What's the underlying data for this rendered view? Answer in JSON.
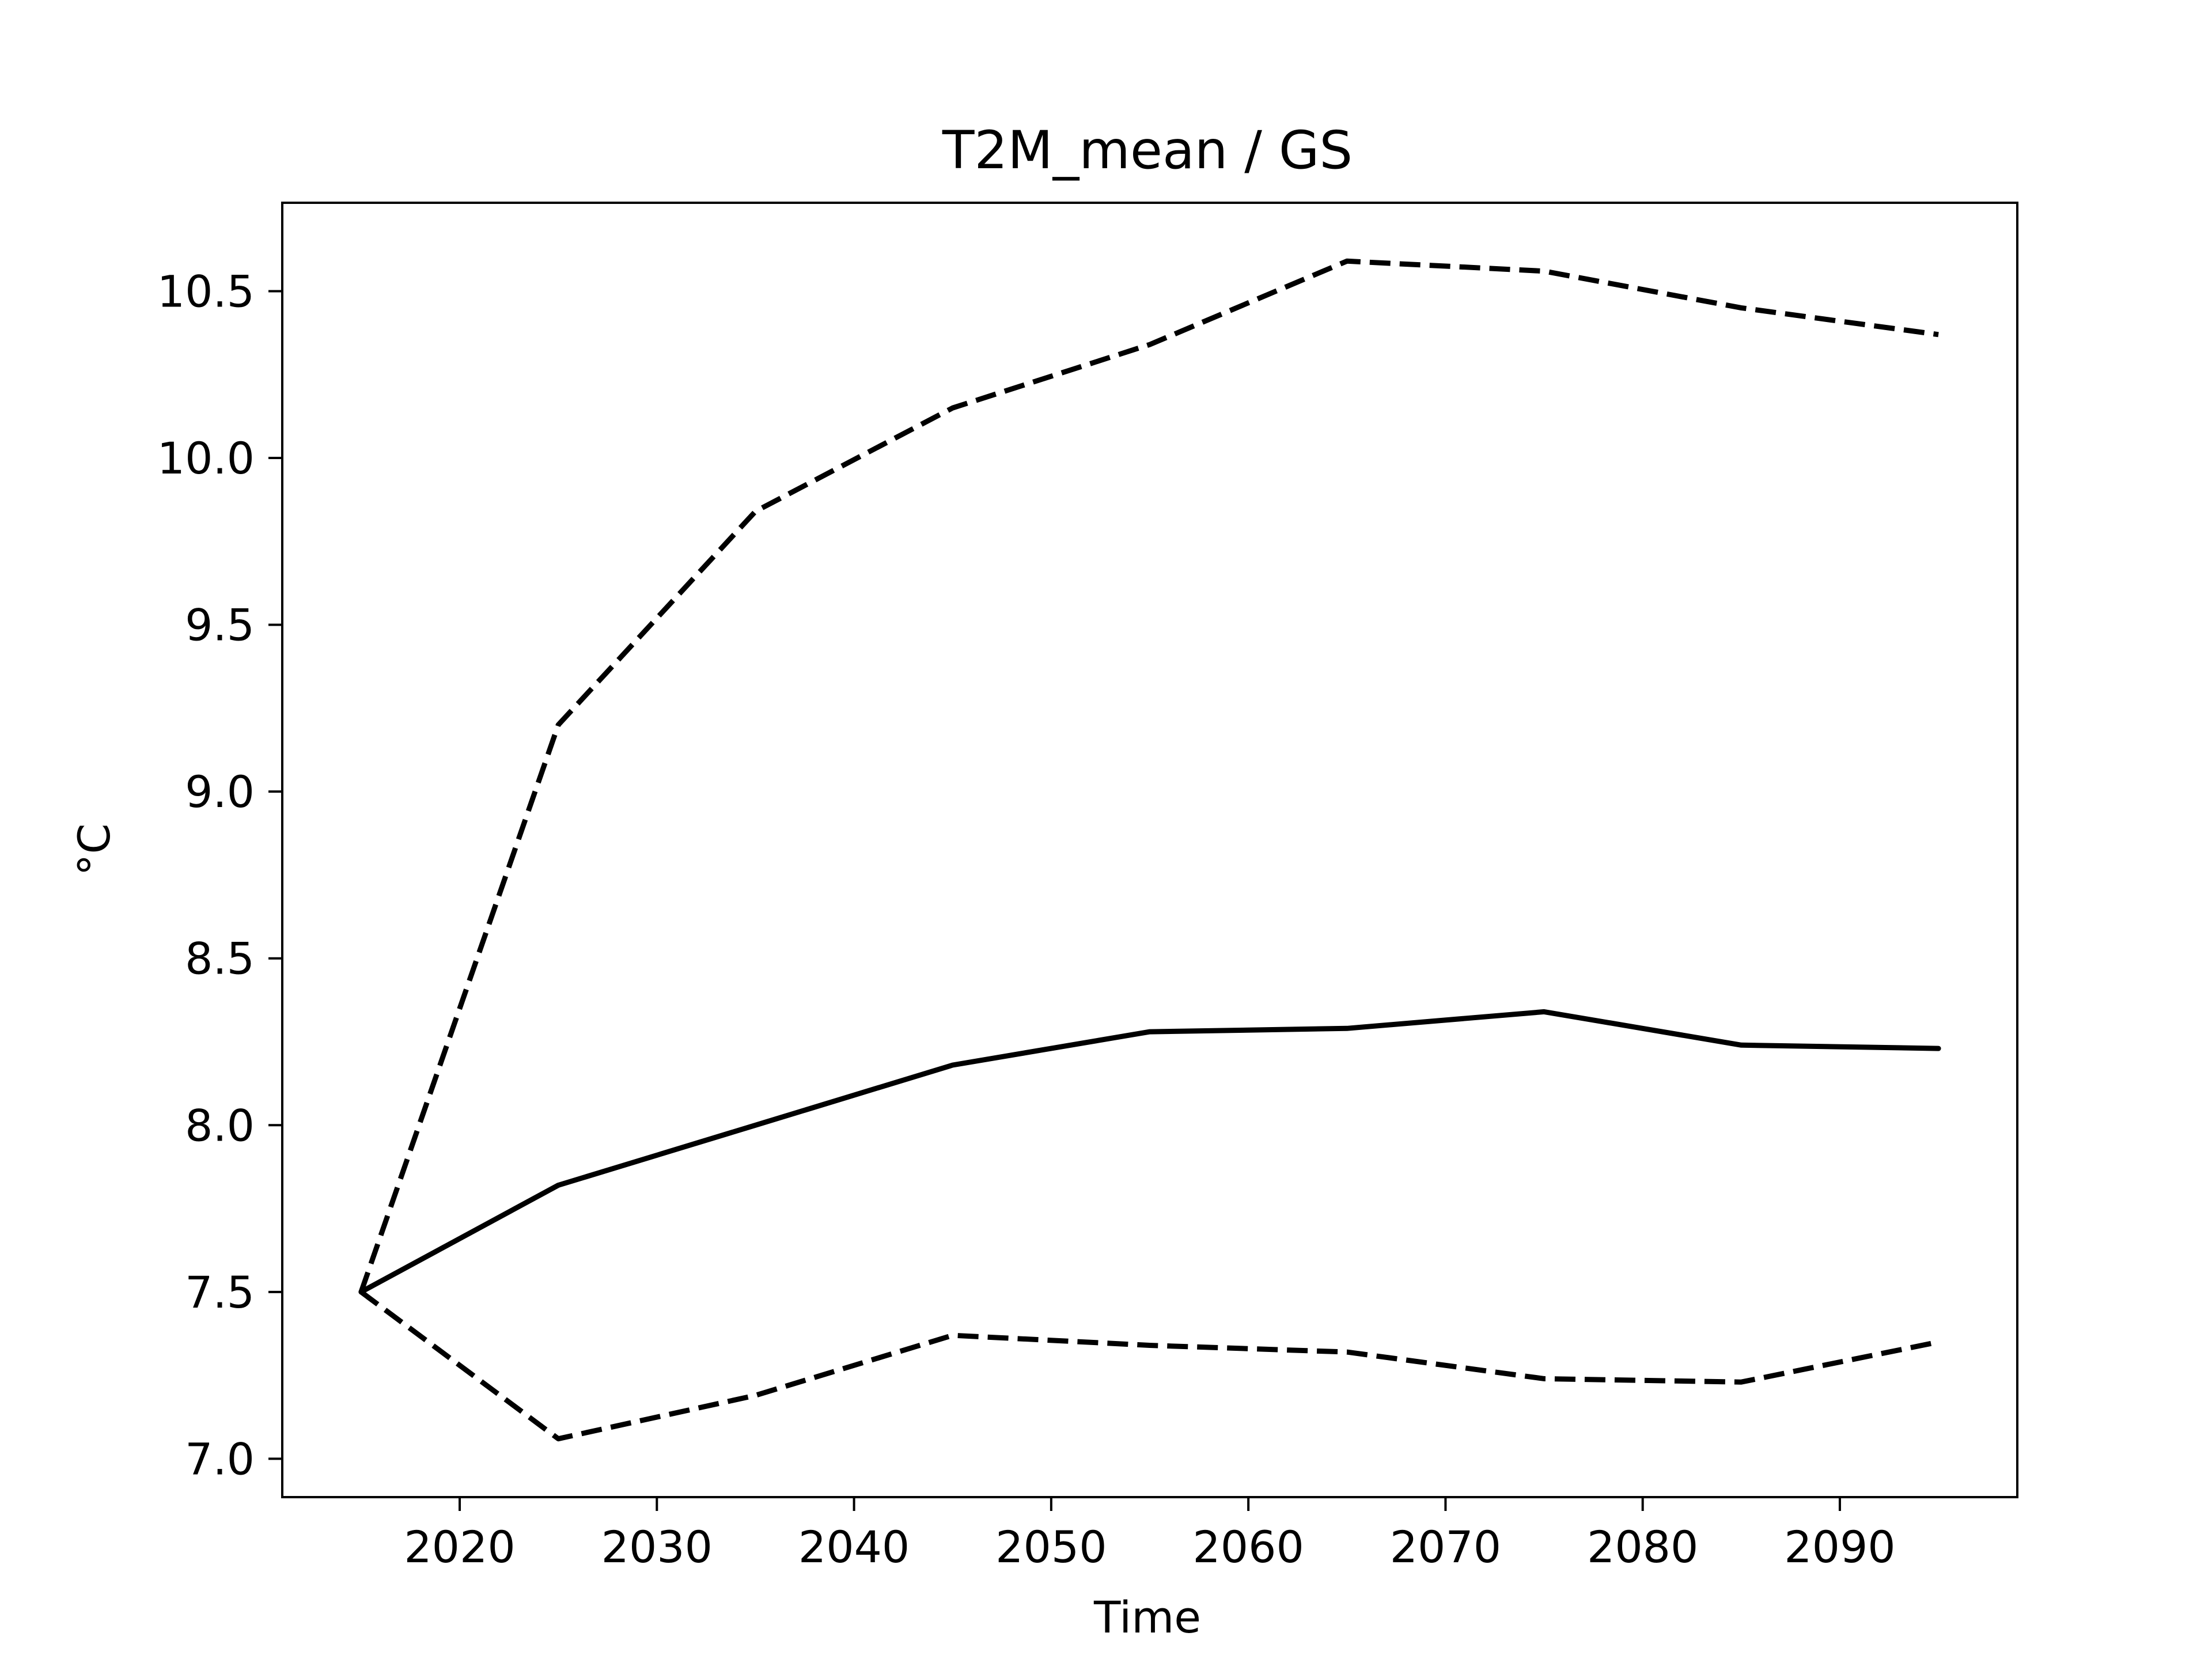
{
  "chart_data": {
    "type": "line",
    "title": "T2M_mean / GS",
    "xlabel": "Time",
    "ylabel": "°C",
    "xlim": [
      2011,
      2099
    ],
    "ylim": [
      6.885,
      10.765
    ],
    "grid": false,
    "x_ticks": [
      2020,
      2030,
      2040,
      2050,
      2060,
      2070,
      2080,
      2090
    ],
    "x_tick_labels": [
      "2020",
      "2030",
      "2040",
      "2050",
      "2060",
      "2070",
      "2080",
      "2090"
    ],
    "y_ticks": [
      7.0,
      7.5,
      8.0,
      8.5,
      9.0,
      9.5,
      10.0,
      10.5
    ],
    "y_tick_labels": [
      "7.0",
      "7.5",
      "8.0",
      "8.5",
      "9.0",
      "9.5",
      "10.0",
      "10.5"
    ],
    "x": [
      2015,
      2025,
      2035,
      2045,
      2055,
      2065,
      2075,
      2085,
      2095
    ],
    "series": [
      {
        "style": "solid",
        "color": "#000000",
        "values": [
          7.5,
          7.82,
          8.0,
          8.18,
          8.28,
          8.29,
          8.34,
          8.24,
          8.23
        ]
      },
      {
        "style": "dashed",
        "color": "#000000",
        "values": [
          7.5,
          9.2,
          9.84,
          10.15,
          10.34,
          10.59,
          10.56,
          10.45,
          10.37
        ]
      },
      {
        "style": "dashed",
        "color": "#000000",
        "values": [
          7.5,
          7.06,
          7.19,
          7.37,
          7.34,
          7.32,
          7.24,
          7.23,
          7.35
        ]
      }
    ]
  }
}
